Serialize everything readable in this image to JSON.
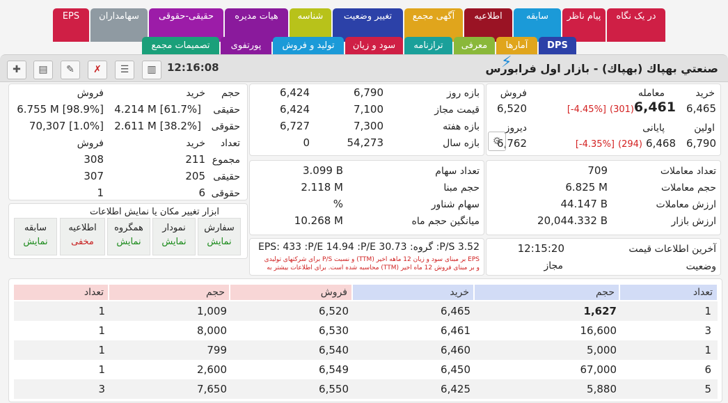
{
  "tabs_row1": [
    {
      "label": "در یک نگاه",
      "color": "#cf1f45"
    },
    {
      "label": "پیام ناظر",
      "color": "#cf1f45"
    },
    {
      "label": "سابقه",
      "color": "#1b9ad8"
    },
    {
      "label": "اطلاعیه",
      "color": "#9a1324"
    },
    {
      "label": "آگهی مجمع",
      "color": "#e0a51c"
    },
    {
      "label": "تغییر وضعیت",
      "color": "#2c41a8"
    },
    {
      "label": "شناسه",
      "color": "#b8c21a"
    },
    {
      "label": "هیات مدیره",
      "color": "#8a1a9c"
    },
    {
      "label": "حقیقی-حقوقی",
      "color": "#9c1ca8"
    },
    {
      "label": "سهامداران",
      "color": "#8f9aa2"
    },
    {
      "label": "EPS",
      "color": "#cf1f45"
    }
  ],
  "tabs_row2": [
    {
      "label": "DPS",
      "color": "#2c41a8"
    },
    {
      "label": "آمارها",
      "color": "#e0a51c"
    },
    {
      "label": "معرفی",
      "color": "#8ab83a"
    },
    {
      "label": "ترازنامه",
      "color": "#1aa09a"
    },
    {
      "label": "سود و زیان",
      "color": "#cf1f45"
    },
    {
      "label": "تولید و فروش",
      "color": "#1b9ad8"
    },
    {
      "label": "پورتفوی",
      "color": "#8a1a9c"
    },
    {
      "label": "تصمیمات مجمع",
      "color": "#1aa07a"
    }
  ],
  "title": {
    "name": "صنعتي بهپاك (بهپاك) - بازار اول فرابورس",
    "time": "12:16:08"
  },
  "quote": {
    "buy_label": "خرید",
    "trade_label": "معامله",
    "sell_label": "فروش",
    "buy": "6,465",
    "last": "6,461",
    "last_change": "(301)",
    "last_pct": "[-4.45%]",
    "sell": "6,520",
    "first_label": "اولین",
    "close_label": "پایانی",
    "yesterday_label": "دیروز",
    "first": "6,790",
    "close": "6,468",
    "close_change": "(294)",
    "close_pct": "[-4.35%]",
    "yesterday": "6,762"
  },
  "ranges": {
    "day_label": "بازه روز",
    "allowed_label": "قیمت مجاز",
    "week_label": "بازه هفته",
    "year_label": "بازه سال",
    "day": [
      "6,790",
      "6,424"
    ],
    "allowed": [
      "7,100",
      "6,424"
    ],
    "week": [
      "7,300",
      "6,727"
    ],
    "year": [
      "54,273",
      "0"
    ]
  },
  "clients": {
    "volume_label": "حجم",
    "buy_label": "خرید",
    "sell_label": "فروش",
    "real_label": "حقیقی",
    "legal_label": "حقوقی",
    "count_label": "تعداد",
    "total_label": "مجموع",
    "real_buy": "4.214 M [61.7%]",
    "real_sell": "6.755 M [98.9%]",
    "legal_buy": "2.611 M [38.2%]",
    "legal_sell": "70,307 [1.0%]",
    "total_buy": "211",
    "total_sell": "308",
    "real_count_buy": "205",
    "real_count_sell": "307",
    "legal_count_buy": "6",
    "legal_count_sell": "1"
  },
  "stats": {
    "trades_count_label": "تعداد معاملات",
    "trades_volume_label": "حجم معاملات",
    "trades_value_label": "ارزش معاملات",
    "market_value_label": "ارزش بازار",
    "trades_count": "709",
    "trades_volume": "6.825 M",
    "trades_value": "44.147 B",
    "market_value": "20,044.332 B",
    "shares_label": "تعداد سهام",
    "base_volume_label": "حجم مبنا",
    "float_label": "سهام شناور",
    "avg_month_label": "میانگین حجم ماه",
    "shares": "3.099 B",
    "base_volume": "2.118 M",
    "float": "%",
    "avg_month": "10.268 M"
  },
  "tools": {
    "title": "ابزار تغییر مکان یا نمایش اطلاعات",
    "buttons": [
      {
        "label": "سفارش",
        "state": "نمایش",
        "hidden": false
      },
      {
        "label": "نمودار",
        "state": "نمایش",
        "hidden": false
      },
      {
        "label": "همگروه",
        "state": "نمایش",
        "hidden": false
      },
      {
        "label": "اطلاعیه",
        "state": "مخفی",
        "hidden": true
      },
      {
        "label": "سابقه",
        "state": "نمایش",
        "hidden": false
      }
    ]
  },
  "eps": {
    "line": "EPS: 433 :P/E 14.94 :P/E گروه: 30.73 :P/S 3.52",
    "note1": "EPS بر مبنای سود و زیان 12 ماهه اخیر (TTM) و نسبت P/S برای شرکتهای تولیدی",
    "note2": "و بر مبنای فروش 12 ماه اخیر (TTM) محاسبه شده است. برای اطلاعات بیشتر به"
  },
  "status": {
    "last_update_label": "آخرین اطلاعات قیمت",
    "last_update": "12:15:20",
    "state_label": "وضعیت",
    "state": "مجاز"
  },
  "orderbook": {
    "headers": {
      "count_buy": "تعداد",
      "vol_buy": "حجم",
      "buy": "خرید",
      "sell": "فروش",
      "vol_sell": "حجم",
      "count_sell": "تعداد"
    },
    "rows": [
      {
        "count_buy": "1",
        "vol_buy": "1,627",
        "buy": "6,465",
        "sell": "6,520",
        "vol_sell": "1,009",
        "count_sell": "1"
      },
      {
        "count_buy": "3",
        "vol_buy": "16,600",
        "buy": "6,461",
        "sell": "6,530",
        "vol_sell": "8,000",
        "count_sell": "1"
      },
      {
        "count_buy": "1",
        "vol_buy": "5,000",
        "buy": "6,460",
        "sell": "6,540",
        "vol_sell": "799",
        "count_sell": "1"
      },
      {
        "count_buy": "6",
        "vol_buy": "67,000",
        "buy": "6,450",
        "sell": "6,549",
        "vol_sell": "2,600",
        "count_sell": "1"
      },
      {
        "count_buy": "5",
        "vol_buy": "5,880",
        "buy": "6,425",
        "sell": "6,550",
        "vol_sell": "7,650",
        "count_sell": "3"
      }
    ]
  }
}
